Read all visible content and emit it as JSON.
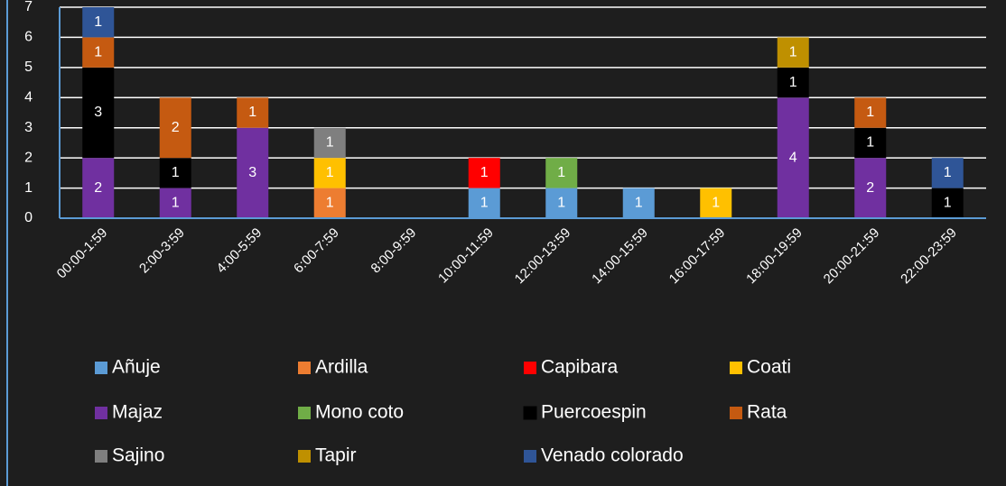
{
  "chart_data": {
    "type": "stacked_bar",
    "categories": [
      "00:00-1:59",
      "2:00-3:59",
      "4:00-5:59",
      "6:00-7:59",
      "8:00-9:59",
      "10:00-11:59",
      "12:00-13:59",
      "14:00-15:59",
      "16:00-17:59",
      "18:00-19:59",
      "20:00-21:59",
      "22:00-23:59"
    ],
    "series": [
      {
        "name": "Añuje",
        "color": "#5b9bd5",
        "values": [
          0,
          0,
          0,
          0,
          0,
          1,
          1,
          1,
          0,
          0,
          0,
          0
        ]
      },
      {
        "name": "Ardilla",
        "color": "#ed7d31",
        "values": [
          0,
          0,
          0,
          1,
          0,
          0,
          0,
          0,
          0,
          0,
          0,
          0
        ]
      },
      {
        "name": "Capibara",
        "color": "#ff0000",
        "values": [
          0,
          0,
          0,
          0,
          0,
          1,
          0,
          0,
          0,
          0,
          0,
          0
        ]
      },
      {
        "name": "Coati",
        "color": "#ffc000",
        "values": [
          0,
          0,
          0,
          1,
          0,
          0,
          0,
          0,
          1,
          0,
          0,
          0
        ]
      },
      {
        "name": "Majaz",
        "color": "#7030a0",
        "values": [
          2,
          1,
          3,
          0,
          0,
          0,
          0,
          0,
          0,
          4,
          2,
          0
        ]
      },
      {
        "name": "Mono coto",
        "color": "#70ad47",
        "values": [
          0,
          0,
          0,
          0,
          0,
          0,
          1,
          0,
          0,
          0,
          0,
          0
        ]
      },
      {
        "name": "Puercoespin",
        "color": "#000000",
        "values": [
          3,
          1,
          0,
          0,
          0,
          0,
          0,
          0,
          0,
          1,
          1,
          1
        ]
      },
      {
        "name": "Rata",
        "color": "#c55a11",
        "values": [
          1,
          2,
          1,
          0,
          0,
          0,
          0,
          0,
          0,
          0,
          1,
          0
        ]
      },
      {
        "name": "Sajino",
        "color": "#7f7f7f",
        "values": [
          0,
          0,
          0,
          1,
          0,
          0,
          0,
          0,
          0,
          0,
          0,
          0
        ]
      },
      {
        "name": "Tapir",
        "color": "#bf9000",
        "values": [
          0,
          0,
          0,
          0,
          0,
          0,
          0,
          0,
          0,
          1,
          0,
          0
        ]
      },
      {
        "name": "Venado colorado",
        "color": "#2f5597",
        "values": [
          1,
          0,
          0,
          0,
          0,
          0,
          0,
          0,
          0,
          0,
          0,
          1
        ]
      }
    ],
    "ylim": [
      0,
      7
    ],
    "yticks": [
      0,
      1,
      2,
      3,
      4,
      5,
      6,
      7
    ],
    "grid": true,
    "legend": "bottom"
  }
}
